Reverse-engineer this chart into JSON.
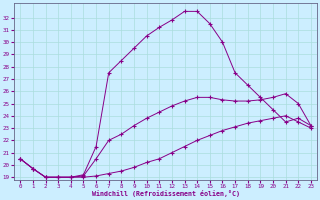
{
  "xlabel": "Windchill (Refroidissement éolien,°C)",
  "background_color": "#cceeff",
  "line_color": "#880088",
  "xlim": [
    -0.5,
    23.5
  ],
  "ylim": [
    18.8,
    33.2
  ],
  "xticks": [
    0,
    1,
    2,
    3,
    4,
    5,
    6,
    7,
    8,
    9,
    10,
    11,
    12,
    13,
    14,
    15,
    16,
    17,
    18,
    19,
    20,
    21,
    22,
    23
  ],
  "yticks": [
    19,
    20,
    21,
    22,
    23,
    24,
    25,
    26,
    27,
    28,
    29,
    30,
    31,
    32
  ],
  "series": [
    [
      20.5,
      19.7,
      19.0,
      19.0,
      19.0,
      19.0,
      19.1,
      19.3,
      19.5,
      19.8,
      20.2,
      20.5,
      21.0,
      21.5,
      22.0,
      22.4,
      22.8,
      23.1,
      23.4,
      23.6,
      23.8,
      24.0,
      23.5,
      23.0
    ],
    [
      20.5,
      19.7,
      19.0,
      19.0,
      19.0,
      19.1,
      20.5,
      22.0,
      22.5,
      23.2,
      23.8,
      24.3,
      24.8,
      25.2,
      25.5,
      25.5,
      25.3,
      25.2,
      25.2,
      25.3,
      25.5,
      25.8,
      25.0,
      23.2
    ],
    [
      20.5,
      19.7,
      19.0,
      19.0,
      19.0,
      19.2,
      21.5,
      27.5,
      28.5,
      29.5,
      30.5,
      31.2,
      31.8,
      32.5,
      32.5,
      31.5,
      30.0,
      27.5,
      26.5,
      25.5,
      24.5,
      23.5,
      23.8,
      23.2
    ]
  ]
}
